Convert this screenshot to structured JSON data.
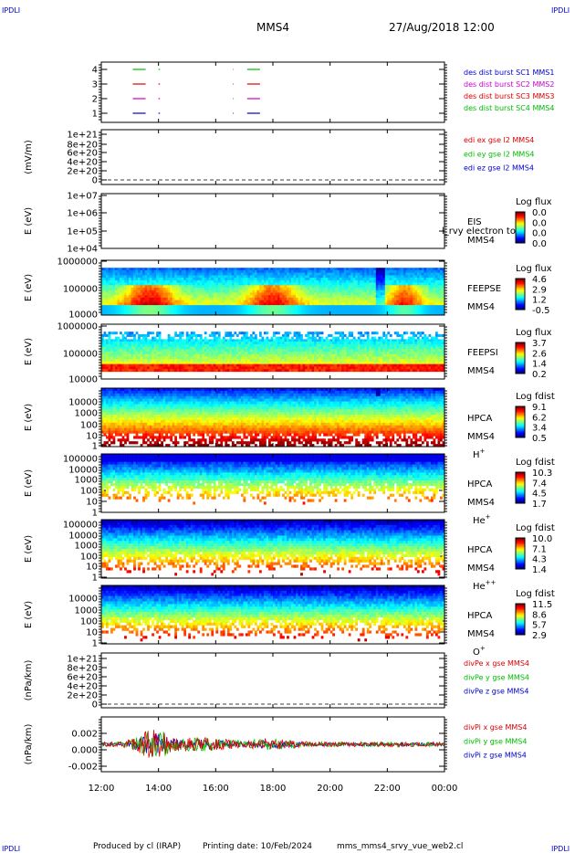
{
  "header": {
    "corner_tl": "IPDLI",
    "corner_tr": "IPDLI",
    "corner_bl": "IPDLI",
    "corner_br": "IPDLI",
    "spacecraft": "MMS4",
    "datetime": "27/Aug/2018 12:00"
  },
  "footer": {
    "produced_by": "Produced by cl (IRAP)",
    "printing_date": "Printing date: 10/Feb/2024",
    "script": "mms_mms4_srvy_vue_web2.cl"
  },
  "colors": {
    "blue": "#0000cc",
    "red": "#dd0000",
    "green": "#00bb00",
    "magenta": "#cc00cc"
  },
  "chart_data": [
    {
      "type": "line",
      "id": "burst",
      "ylabel": "",
      "yticks": [
        "4",
        "3",
        "2",
        "1"
      ],
      "legend": [
        {
          "label": "des dist burst SC1 MMS1",
          "color": "#0000cc"
        },
        {
          "label": "des dist burst SC2 MMS2",
          "color": "#cc00cc"
        },
        {
          "label": "des dist burst SC3 MMS3",
          "color": "#dd0000"
        },
        {
          "label": "des dist burst SC4 MMS4",
          "color": "#00bb00"
        }
      ],
      "series": [
        {
          "level": 4,
          "color": "#00bb00",
          "intervals": [
            [
              12.2,
              12.22
            ],
            [
              13.1,
              13.55
            ],
            [
              14.0,
              14.05
            ],
            [
              16.6,
              16.62
            ],
            [
              17.1,
              17.55
            ]
          ]
        },
        {
          "level": 3,
          "color": "#dd0000",
          "intervals": [
            [
              12.2,
              12.22
            ],
            [
              13.1,
              13.55
            ],
            [
              14.0,
              14.05
            ],
            [
              16.6,
              16.62
            ],
            [
              17.1,
              17.55
            ]
          ]
        },
        {
          "level": 2,
          "color": "#cc00cc",
          "intervals": [
            [
              12.2,
              12.22
            ],
            [
              13.1,
              13.55
            ],
            [
              14.0,
              14.05
            ],
            [
              16.6,
              16.62
            ],
            [
              17.1,
              17.55
            ]
          ]
        },
        {
          "level": 1,
          "color": "#0000cc",
          "intervals": [
            [
              12.2,
              12.22
            ],
            [
              13.1,
              13.55
            ],
            [
              14.0,
              14.05
            ],
            [
              16.6,
              16.62
            ],
            [
              17.1,
              17.55
            ]
          ]
        }
      ]
    },
    {
      "type": "line",
      "id": "edi",
      "ylabel": "(mV/m)",
      "yticks": [
        "1e+21",
        "8e+20",
        "6e+20",
        "4e+20",
        "2e+20",
        "0"
      ],
      "legend": [
        {
          "label": "edi ex gse l2 MMS4",
          "color": "#dd0000"
        },
        {
          "label": "edi ey gse l2 MMS4",
          "color": "#00bb00"
        },
        {
          "label": "edi ez gse l2 MMS4",
          "color": "#0000cc"
        }
      ]
    },
    {
      "type": "heatmap",
      "id": "eis",
      "ylabel": "E (eV)",
      "yticks": [
        "1e+07",
        "1e+06",
        "1e+05",
        "1e+04"
      ],
      "side_labels": [
        "EIS",
        "MMS4"
      ],
      "overlay_text": "l_rvy electron to",
      "colorbar": {
        "title": "Log flux",
        "ticks": [
          "0.0",
          "0.0",
          "0.0",
          "0.0"
        ]
      }
    },
    {
      "type": "heatmap",
      "id": "feepse",
      "ylabel": "E (eV)",
      "yticks": [
        "1000000",
        "100000",
        "10000"
      ],
      "side_labels": [
        "FEEPSE",
        "MMS4"
      ],
      "colorbar": {
        "title": "Log flux",
        "ticks": [
          "4.6",
          "2.9",
          "1.2",
          "-0.5"
        ]
      }
    },
    {
      "type": "heatmap",
      "id": "feepsi",
      "ylabel": "E (eV)",
      "yticks": [
        "1000000",
        "100000",
        "10000"
      ],
      "side_labels": [
        "FEEPSI",
        "MMS4"
      ],
      "colorbar": {
        "title": "Log flux",
        "ticks": [
          "3.7",
          "2.6",
          "1.4",
          "0.2"
        ]
      }
    },
    {
      "type": "heatmap",
      "id": "hpca_h",
      "ylabel": "E (eV)",
      "yticks": [
        "10000",
        "1000",
        "100",
        "10",
        "1"
      ],
      "side_labels": [
        "HPCA",
        "MMS4"
      ],
      "species": "H",
      "species_sup": "+",
      "colorbar": {
        "title": "Log fdist",
        "ticks": [
          "9.1",
          "6.2",
          "3.4",
          "0.5"
        ]
      }
    },
    {
      "type": "heatmap",
      "id": "hpca_he",
      "ylabel": "E (eV)",
      "yticks": [
        "100000",
        "10000",
        "1000",
        "100",
        "10",
        "1"
      ],
      "side_labels": [
        "HPCA",
        "MMS4"
      ],
      "species": "He",
      "species_sup": "+",
      "colorbar": {
        "title": "Log fdist",
        "ticks": [
          "10.3",
          "7.4",
          "4.5",
          "1.7"
        ]
      }
    },
    {
      "type": "heatmap",
      "id": "hpca_he2",
      "ylabel": "E (eV)",
      "yticks": [
        "100000",
        "10000",
        "1000",
        "100",
        "10",
        "1"
      ],
      "side_labels": [
        "HPCA",
        "MMS4"
      ],
      "species": "He",
      "species_sup": "++",
      "colorbar": {
        "title": "Log fdist",
        "ticks": [
          "10.0",
          "7.1",
          "4.3",
          "1.4"
        ]
      }
    },
    {
      "type": "heatmap",
      "id": "hpca_o",
      "ylabel": "E (eV)",
      "yticks": [
        "10000",
        "1000",
        "100",
        "10",
        "1"
      ],
      "side_labels": [
        "HPCA",
        "MMS4"
      ],
      "species": "O",
      "species_sup": "+",
      "colorbar": {
        "title": "Log fdist",
        "ticks": [
          "11.5",
          "8.6",
          "5.7",
          "2.9"
        ]
      }
    },
    {
      "type": "line",
      "id": "divpe",
      "ylabel": "(nPa/km)",
      "yticks": [
        "1e+21",
        "8e+20",
        "6e+20",
        "4e+20",
        "2e+20",
        "0"
      ],
      "legend": [
        {
          "label": "divPe x gse MMS4",
          "color": "#dd0000"
        },
        {
          "label": "divPe y gse MMS4",
          "color": "#00bb00"
        },
        {
          "label": "divPe z gse MMS4",
          "color": "#0000cc"
        }
      ]
    },
    {
      "type": "line",
      "id": "divpi",
      "ylabel": "(nPa/km)",
      "yticks": [
        "0.002",
        "0.000",
        "-0.002"
      ],
      "ylim": [
        -0.0035,
        0.0035
      ],
      "legend": [
        {
          "label": "divPi x gse MMS4",
          "color": "#dd0000"
        },
        {
          "label": "divPi y gse MMS4",
          "color": "#00bb00"
        },
        {
          "label": "divPi z gse MMS4",
          "color": "#0000cc"
        }
      ]
    }
  ],
  "x_axis": {
    "range_hours": [
      12,
      24
    ],
    "tick_labels": [
      "12:00",
      "14:00",
      "16:00",
      "18:00",
      "20:00",
      "22:00",
      "00:00"
    ]
  }
}
